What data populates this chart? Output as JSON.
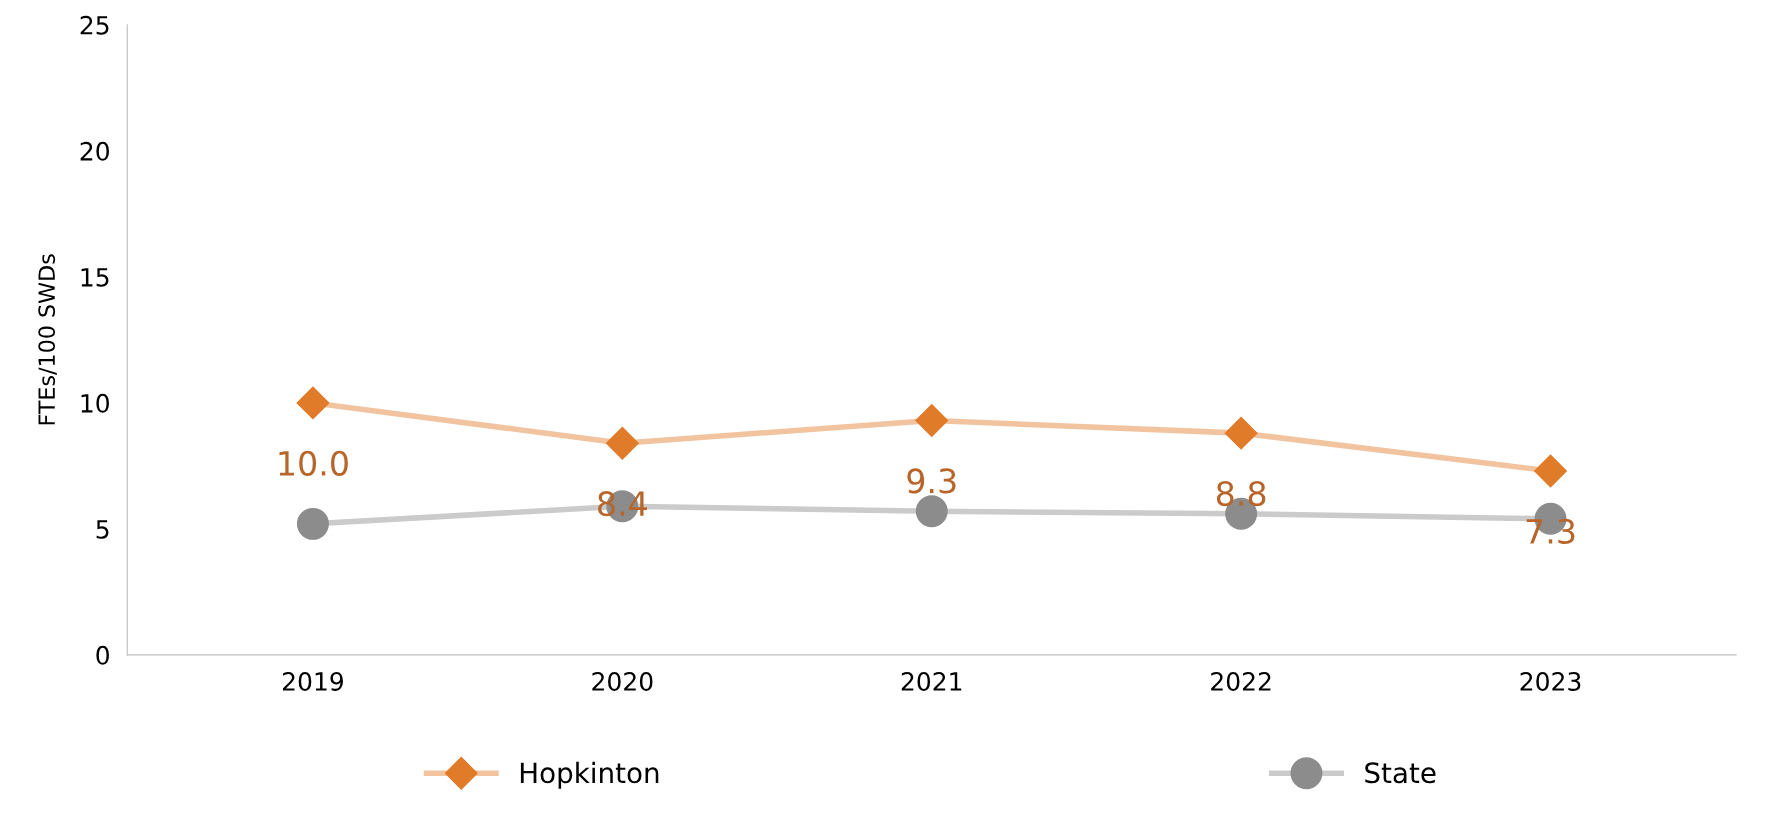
{
  "chart_data": {
    "type": "line",
    "ylabel": "FTEs/100 SWDs",
    "categories": [
      "2019",
      "2020",
      "2021",
      "2022",
      "2023"
    ],
    "series": [
      {
        "name": "Hopkinton",
        "color": "#e07b2a",
        "marker": "diamond",
        "values": [
          10.0,
          8.4,
          9.3,
          8.8,
          7.3
        ],
        "value_labels": [
          "10.0",
          "8.4",
          "9.3",
          "8.8",
          "7.3"
        ]
      },
      {
        "name": "State",
        "color": "#8c8c8c",
        "marker": "circle",
        "values": [
          5.2,
          5.9,
          5.7,
          5.6,
          5.4
        ]
      }
    ],
    "ylim": [
      0,
      25
    ],
    "yticks": [
      0,
      5,
      10,
      15,
      20,
      25
    ],
    "grid": false,
    "legend": "bottom"
  }
}
